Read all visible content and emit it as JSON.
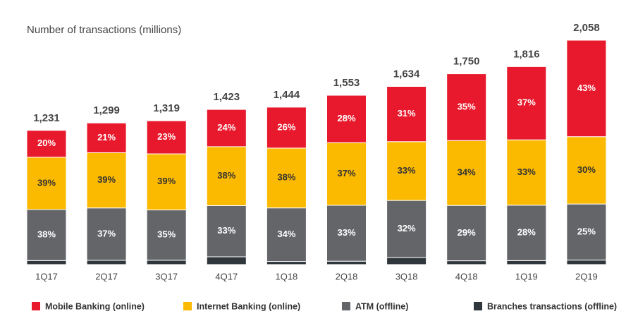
{
  "chart_data": {
    "type": "bar",
    "stacked": true,
    "title": "Number of transactions (millions)",
    "categories": [
      "1Q17",
      "2Q17",
      "3Q17",
      "4Q17",
      "1Q18",
      "2Q18",
      "3Q18",
      "4Q18",
      "1Q19",
      "2Q19"
    ],
    "totals": {
      "values": [
        1231,
        1299,
        1319,
        1423,
        1444,
        1553,
        1634,
        1750,
        1816,
        2058
      ],
      "value_labels": [
        "1,231",
        "1,299",
        "1,319",
        "1,423",
        "1,444",
        "1,553",
        "1,634",
        "1,750",
        "1,816",
        "2,058"
      ]
    },
    "series": [
      {
        "name": "Mobile Banking (online)",
        "color": "#e8192c",
        "values": [
          20,
          21,
          23,
          24,
          26,
          28,
          31,
          35,
          37,
          43
        ],
        "value_labels": [
          "20%",
          "21%",
          "23%",
          "24%",
          "26%",
          "28%",
          "31%",
          "35%",
          "37%",
          "43%"
        ]
      },
      {
        "name": "Internet Banking (online)",
        "color": "#fbb900",
        "values": [
          39,
          39,
          39,
          38,
          38,
          37,
          33,
          34,
          33,
          30
        ],
        "value_labels": [
          "39%",
          "39%",
          "39%",
          "38%",
          "38%",
          "37%",
          "33%",
          "34%",
          "33%",
          "30%"
        ]
      },
      {
        "name": "ATM (offline)",
        "color": "#636569",
        "values": [
          38,
          37,
          35,
          33,
          34,
          33,
          32,
          29,
          28,
          25
        ],
        "value_labels": [
          "38%",
          "37%",
          "35%",
          "33%",
          "34%",
          "33%",
          "32%",
          "29%",
          "28%",
          "25%"
        ]
      },
      {
        "name": "Branches transactions (offline)",
        "color": "#30373c",
        "values": [
          3,
          3,
          3,
          5,
          2,
          2,
          4,
          2,
          2,
          2
        ]
      }
    ]
  }
}
